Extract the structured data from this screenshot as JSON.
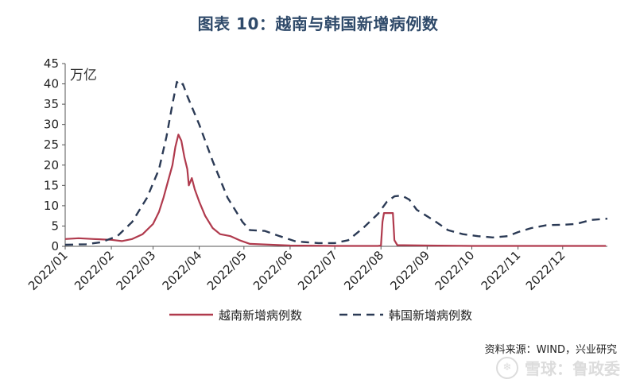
{
  "chart_data": {
    "type": "line",
    "title": "图表 10：越南与韩国新增病例数",
    "unit": "万亿",
    "ylim": [
      0,
      45
    ],
    "yticks": [
      0,
      5,
      10,
      15,
      20,
      25,
      30,
      35,
      40,
      45
    ],
    "xlim": [
      "2022/01/01",
      "2022/12/31"
    ],
    "xticks": [
      "2022/01",
      "2022/02",
      "2022/03",
      "2022/04",
      "2022/05",
      "2022/06",
      "2022/07",
      "2022/08",
      "2022/09",
      "2022/10",
      "2022/11",
      "2022/12"
    ],
    "grid": false,
    "legend_position": "bottom",
    "series": [
      {
        "name": "越南新增病例数",
        "color": "#b03a4d",
        "style": "solid",
        "points": [
          [
            "2022/01/01",
            1.8
          ],
          [
            "2022/01/10",
            2.0
          ],
          [
            "2022/01/20",
            1.8
          ],
          [
            "2022/02/01",
            1.6
          ],
          [
            "2022/02/08",
            1.3
          ],
          [
            "2022/02/15",
            1.8
          ],
          [
            "2022/02/22",
            3.0
          ],
          [
            "2022/03/01",
            5.5
          ],
          [
            "2022/03/05",
            8.5
          ],
          [
            "2022/03/08",
            12.0
          ],
          [
            "2022/03/11",
            16.0
          ],
          [
            "2022/03/14",
            20.0
          ],
          [
            "2022/03/16",
            24.5
          ],
          [
            "2022/03/18",
            27.5
          ],
          [
            "2022/03/20",
            26.0
          ],
          [
            "2022/03/22",
            22.0
          ],
          [
            "2022/03/24",
            19.0
          ],
          [
            "2022/03/25",
            15.0
          ],
          [
            "2022/03/27",
            16.8
          ],
          [
            "2022/03/29",
            14.0
          ],
          [
            "2022/04/01",
            11.0
          ],
          [
            "2022/04/05",
            7.5
          ],
          [
            "2022/04/10",
            4.5
          ],
          [
            "2022/04/15",
            3.0
          ],
          [
            "2022/04/22",
            2.5
          ],
          [
            "2022/04/28",
            1.5
          ],
          [
            "2022/05/05",
            0.6
          ],
          [
            "2022/06/01",
            0.2
          ],
          [
            "2022/07/01",
            0.1
          ],
          [
            "2022/07/30",
            0.1
          ],
          [
            "2022/08/01",
            0.2
          ],
          [
            "2022/08/02",
            6.0
          ],
          [
            "2022/08/03",
            8.2
          ],
          [
            "2022/08/09",
            8.2
          ],
          [
            "2022/08/10",
            1.5
          ],
          [
            "2022/08/12",
            0.3
          ],
          [
            "2022/09/01",
            0.2
          ],
          [
            "2022/10/01",
            0.1
          ],
          [
            "2022/11/01",
            0.1
          ],
          [
            "2022/12/30",
            0.1
          ]
        ]
      },
      {
        "name": "韩国新增病例数",
        "color": "#2b3a55",
        "style": "dashed",
        "points": [
          [
            "2022/01/01",
            0.4
          ],
          [
            "2022/01/15",
            0.5
          ],
          [
            "2022/01/25",
            1.0
          ],
          [
            "2022/02/05",
            2.5
          ],
          [
            "2022/02/15",
            6.0
          ],
          [
            "2022/02/25",
            12.0
          ],
          [
            "2022/03/05",
            19.0
          ],
          [
            "2022/03/10",
            27.0
          ],
          [
            "2022/03/14",
            35.0
          ],
          [
            "2022/03/17",
            40.5
          ],
          [
            "2022/03/19",
            39.5
          ],
          [
            "2022/03/21",
            40.0
          ],
          [
            "2022/03/24",
            37.0
          ],
          [
            "2022/04/01",
            30.0
          ],
          [
            "2022/04/10",
            21.0
          ],
          [
            "2022/04/20",
            12.0
          ],
          [
            "2022/04/30",
            6.0
          ],
          [
            "2022/05/05",
            4.0
          ],
          [
            "2022/05/15",
            3.8
          ],
          [
            "2022/05/25",
            2.5
          ],
          [
            "2022/06/05",
            1.2
          ],
          [
            "2022/06/20",
            0.8
          ],
          [
            "2022/07/01",
            0.8
          ],
          [
            "2022/07/10",
            1.5
          ],
          [
            "2022/07/20",
            4.5
          ],
          [
            "2022/07/30",
            8.0
          ],
          [
            "2022/08/05",
            11.0
          ],
          [
            "2022/08/10",
            12.3
          ],
          [
            "2022/08/15",
            12.5
          ],
          [
            "2022/08/20",
            11.5
          ],
          [
            "2022/08/25",
            9.0
          ],
          [
            "2022/09/05",
            6.5
          ],
          [
            "2022/09/15",
            4.0
          ],
          [
            "2022/09/25",
            3.0
          ],
          [
            "2022/10/05",
            2.5
          ],
          [
            "2022/10/15",
            2.2
          ],
          [
            "2022/10/25",
            2.5
          ],
          [
            "2022/11/01",
            3.5
          ],
          [
            "2022/11/10",
            4.5
          ],
          [
            "2022/11/20",
            5.2
          ],
          [
            "2022/12/01",
            5.3
          ],
          [
            "2022/12/10",
            5.5
          ],
          [
            "2022/12/20",
            6.5
          ],
          [
            "2022/12/31",
            6.8
          ]
        ]
      }
    ]
  },
  "source": "资料来源：WIND，兴业研究",
  "watermark": {
    "icon": "snowball-logo-icon",
    "text": "雪球：鲁政委"
  }
}
